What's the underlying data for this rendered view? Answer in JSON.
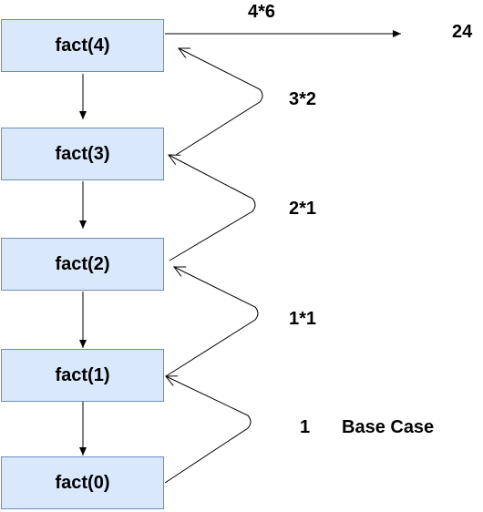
{
  "nodes": [
    "fact(4)",
    "fact(3)",
    "fact(2)",
    "fact(1)",
    "fact(0)"
  ],
  "returns": {
    "top_product": "4*6",
    "final_result": "24",
    "step_3": "3*2",
    "step_2": "2*1",
    "step_1": "1*1",
    "base_value": "1",
    "base_label": "Base Case"
  }
}
